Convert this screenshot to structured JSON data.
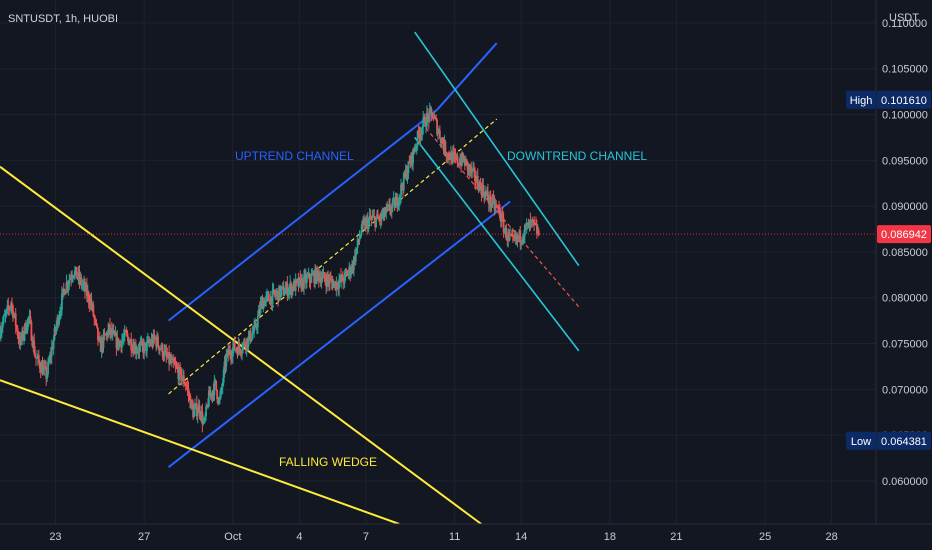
{
  "header": {
    "symbol_line": "SNTUSDT, 1h, HUOBI"
  },
  "price_axis": {
    "currency": "USDT"
  },
  "colors": {
    "background": "#131722",
    "up": "#26a69a",
    "down": "#ef5350",
    "uptrend": "#2962ff",
    "downtrend": "#26c6da",
    "wedge": "#ffeb3b",
    "current_price_badge": "#f23645",
    "hi_lo_badge": "#0c2a66"
  },
  "chart_data": {
    "type": "candlestick",
    "symbol": "SNTUSDT",
    "interval": "1h",
    "exchange": "HUOBI",
    "y_ticks": [
      "0.060000",
      "0.065000",
      "0.070000",
      "0.075000",
      "0.080000",
      "0.085000",
      "0.090000",
      "0.095000",
      "0.100000",
      "0.105000",
      "0.110000"
    ],
    "x_ticks": [
      "23",
      "27",
      "Oct",
      "4",
      "7",
      "11",
      "14",
      "18",
      "21",
      "25",
      "28"
    ],
    "x_tick_days": [
      -8,
      -4,
      0,
      3,
      6,
      10,
      13,
      17,
      20,
      24,
      27
    ],
    "ylim": [
      0.0553,
      0.1125
    ],
    "xlim": [
      -10.5,
      29
    ],
    "current_price": {
      "label": "0.086942",
      "value": 0.086942
    },
    "high": {
      "label": "High",
      "value_text": "0.101610",
      "value": 0.10161
    },
    "low": {
      "label": "Low",
      "value_text": "0.064381",
      "value": 0.064381
    },
    "price_path": [
      [
        -10.5,
        0.0765
      ],
      [
        -10.0,
        0.0795
      ],
      [
        -9.6,
        0.075
      ],
      [
        -9.2,
        0.0778
      ],
      [
        -8.9,
        0.0735
      ],
      [
        -8.4,
        0.0715
      ],
      [
        -8.0,
        0.0765
      ],
      [
        -7.6,
        0.081
      ],
      [
        -7.2,
        0.083
      ],
      [
        -6.8,
        0.0815
      ],
      [
        -6.4,
        0.0795
      ],
      [
        -6.0,
        0.0745
      ],
      [
        -5.6,
        0.0765
      ],
      [
        -5.2,
        0.075
      ],
      [
        -4.8,
        0.0758
      ],
      [
        -4.4,
        0.0745
      ],
      [
        -4.0,
        0.0745
      ],
      [
        -3.5,
        0.0755
      ],
      [
        -3.0,
        0.0735
      ],
      [
        -2.5,
        0.072
      ],
      [
        -2.1,
        0.0705
      ],
      [
        -1.8,
        0.0675
      ],
      [
        -1.5,
        0.068
      ],
      [
        -1.3,
        0.066
      ],
      [
        -1.1,
        0.069
      ],
      [
        -0.8,
        0.0705
      ],
      [
        -0.6,
        0.0685
      ],
      [
        -0.3,
        0.0735
      ],
      [
        0.0,
        0.0745
      ],
      [
        0.3,
        0.0745
      ],
      [
        0.7,
        0.0755
      ],
      [
        1.0,
        0.0765
      ],
      [
        1.3,
        0.0795
      ],
      [
        1.7,
        0.08
      ],
      [
        2.1,
        0.0805
      ],
      [
        2.5,
        0.081
      ],
      [
        3.0,
        0.0815
      ],
      [
        3.4,
        0.082
      ],
      [
        3.8,
        0.0825
      ],
      [
        4.2,
        0.082
      ],
      [
        4.6,
        0.0815
      ],
      [
        5.0,
        0.082
      ],
      [
        5.4,
        0.0835
      ],
      [
        5.8,
        0.0875
      ],
      [
        6.2,
        0.0885
      ],
      [
        6.6,
        0.0885
      ],
      [
        7.0,
        0.0895
      ],
      [
        7.4,
        0.0905
      ],
      [
        7.8,
        0.0935
      ],
      [
        8.1,
        0.0955
      ],
      [
        8.4,
        0.098
      ],
      [
        8.7,
        0.0995
      ],
      [
        9.0,
        0.1
      ],
      [
        9.3,
        0.098
      ],
      [
        9.6,
        0.096
      ],
      [
        10.0,
        0.095
      ],
      [
        10.4,
        0.095
      ],
      [
        10.8,
        0.0935
      ],
      [
        11.2,
        0.092
      ],
      [
        11.6,
        0.0905
      ],
      [
        12.0,
        0.0895
      ],
      [
        12.3,
        0.087
      ],
      [
        12.6,
        0.086
      ],
      [
        12.9,
        0.0865
      ],
      [
        13.2,
        0.0875
      ],
      [
        13.5,
        0.088
      ],
      [
        13.8,
        0.0869
      ]
    ],
    "annotations": [
      "UPTREND CHANNEL",
      "DOWNTREND CHANNEL",
      "FALLING WEDGE"
    ],
    "drawings": {
      "uptrend_upper": [
        [
          -2.9,
          0.0775
        ],
        [
          9.2,
          0.1005
        ]
      ],
      "uptrend_extension": [
        [
          9.2,
          0.1005
        ],
        [
          11.9,
          0.1078
        ]
      ],
      "uptrend_lower": [
        [
          -2.9,
          0.0615
        ],
        [
          12.5,
          0.0905
        ]
      ],
      "uptrend_mid": [
        [
          -2.9,
          0.0695
        ],
        [
          11.9,
          0.0995
        ]
      ],
      "downtrend_upper": [
        [
          8.2,
          0.109
        ],
        [
          15.6,
          0.0835
        ]
      ],
      "downtrend_lower": [
        [
          8.2,
          0.0975
        ],
        [
          15.6,
          0.0742
        ]
      ],
      "downtrend_mid": [
        [
          8.7,
          0.0985
        ],
        [
          15.6,
          0.079
        ]
      ],
      "wedge_upper": [
        [
          -10.5,
          0.0943
        ],
        [
          11.2,
          0.0553
        ]
      ],
      "wedge_lower": [
        [
          -10.5,
          0.071
        ],
        [
          7.5,
          0.0553
        ]
      ]
    }
  }
}
